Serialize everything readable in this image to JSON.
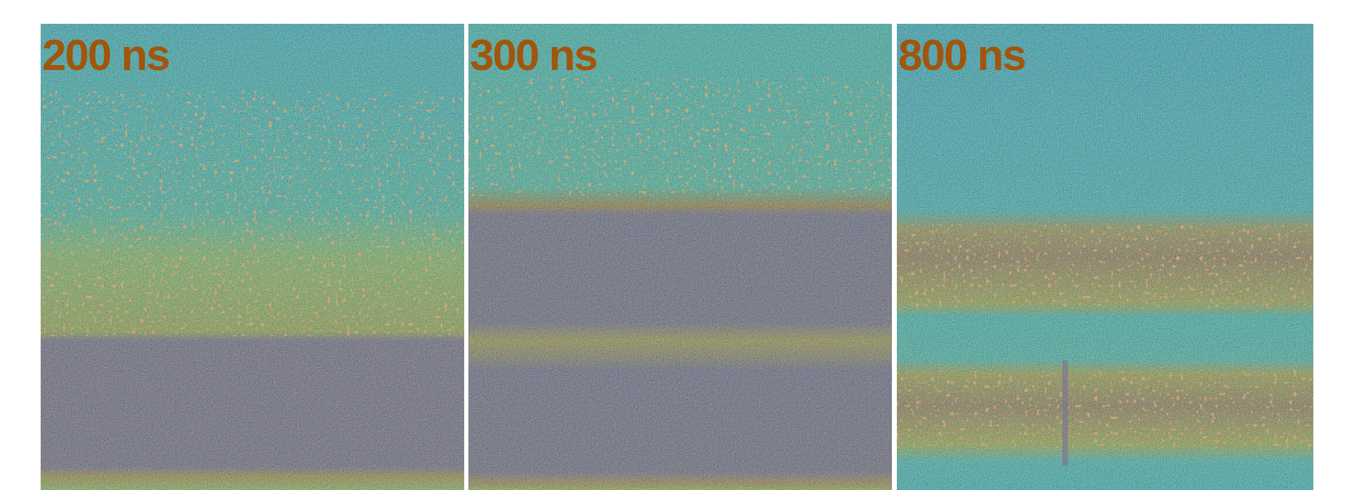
{
  "panels": [
    {
      "label": "200 ns"
    },
    {
      "label": "300 ns"
    },
    {
      "label": "800 ns"
    }
  ]
}
